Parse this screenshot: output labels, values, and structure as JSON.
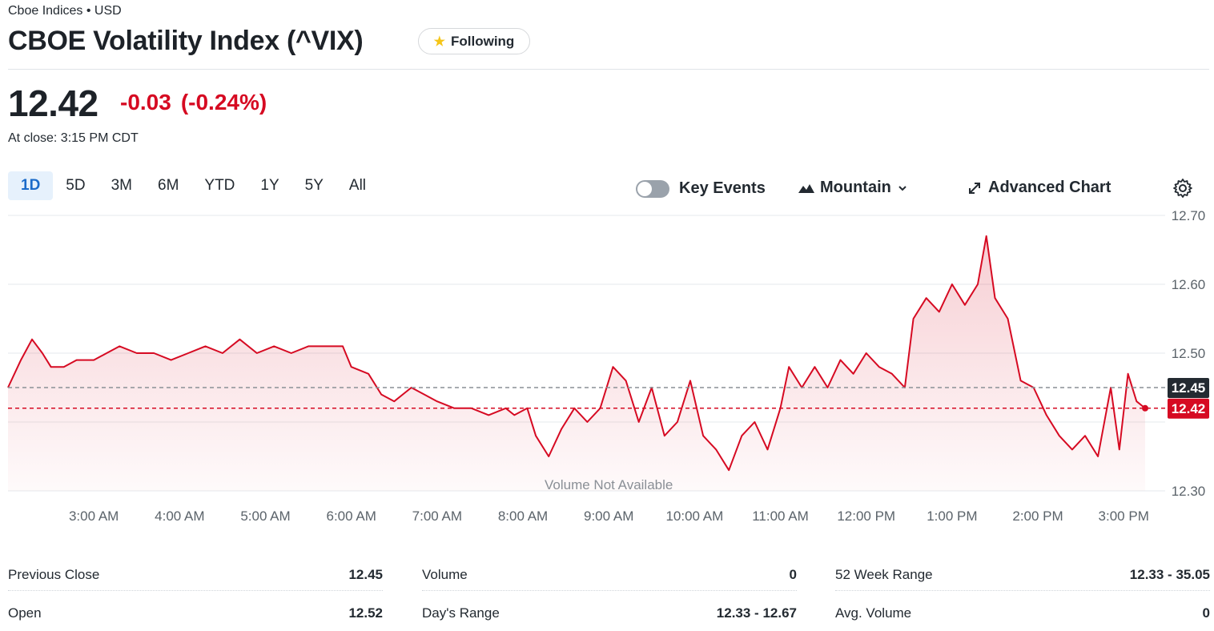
{
  "header": {
    "exchange": "Cboe Indices • USD",
    "title": "CBOE Volatility Index (^VIX)",
    "follow_label": "Following"
  },
  "quote": {
    "price": "12.42",
    "change": "-0.03",
    "change_pct": "(-0.24%)",
    "close_time": "At close: 3:15 PM CDT"
  },
  "ranges": [
    "1D",
    "5D",
    "3M",
    "6M",
    "YTD",
    "1Y",
    "5Y",
    "All"
  ],
  "active_range": "1D",
  "toolbar": {
    "key_events": "Key Events",
    "chart_type": "Mountain",
    "advanced": "Advanced Chart"
  },
  "colors": {
    "accent": "#d60a22",
    "active_tab_bg": "#e6f1fc",
    "active_tab_text": "#1b6bc9",
    "prev_close_tag": "#232a31"
  },
  "chart_data": {
    "type": "area",
    "y_ticks": [
      "12.70",
      "12.60",
      "12.50",
      "12.45",
      "12.42",
      "12.30"
    ],
    "ylim": [
      12.3,
      12.7
    ],
    "x_ticks": [
      "3:00 AM",
      "4:00 AM",
      "5:00 AM",
      "6:00 AM",
      "7:00 AM",
      "8:00 AM",
      "9:00 AM",
      "10:00 AM",
      "11:00 AM",
      "12:00 PM",
      "1:00 PM",
      "2:00 PM",
      "3:00 PM"
    ],
    "x_start_hour": 2.0,
    "x_end_hour": 15.25,
    "previous_close": 12.45,
    "last": 12.42,
    "volume_note": "Volume Not Available",
    "points": [
      [
        2.0,
        12.45
      ],
      [
        2.15,
        12.49
      ],
      [
        2.28,
        12.52
      ],
      [
        2.4,
        12.5
      ],
      [
        2.5,
        12.48
      ],
      [
        2.65,
        12.48
      ],
      [
        2.8,
        12.49
      ],
      [
        3.0,
        12.49
      ],
      [
        3.15,
        12.5
      ],
      [
        3.3,
        12.51
      ],
      [
        3.5,
        12.5
      ],
      [
        3.7,
        12.5
      ],
      [
        3.9,
        12.49
      ],
      [
        4.1,
        12.5
      ],
      [
        4.3,
        12.51
      ],
      [
        4.5,
        12.5
      ],
      [
        4.7,
        12.52
      ],
      [
        4.9,
        12.5
      ],
      [
        5.1,
        12.51
      ],
      [
        5.3,
        12.5
      ],
      [
        5.5,
        12.51
      ],
      [
        5.7,
        12.51
      ],
      [
        5.9,
        12.51
      ],
      [
        6.0,
        12.48
      ],
      [
        6.2,
        12.47
      ],
      [
        6.35,
        12.44
      ],
      [
        6.5,
        12.43
      ],
      [
        6.7,
        12.45
      ],
      [
        6.85,
        12.44
      ],
      [
        7.0,
        12.43
      ],
      [
        7.2,
        12.42
      ],
      [
        7.4,
        12.42
      ],
      [
        7.6,
        12.41
      ],
      [
        7.8,
        12.42
      ],
      [
        7.9,
        12.41
      ],
      [
        8.05,
        12.42
      ],
      [
        8.15,
        12.38
      ],
      [
        8.3,
        12.35
      ],
      [
        8.45,
        12.39
      ],
      [
        8.6,
        12.42
      ],
      [
        8.75,
        12.4
      ],
      [
        8.9,
        12.42
      ],
      [
        9.05,
        12.48
      ],
      [
        9.2,
        12.46
      ],
      [
        9.35,
        12.4
      ],
      [
        9.5,
        12.45
      ],
      [
        9.65,
        12.38
      ],
      [
        9.8,
        12.4
      ],
      [
        9.95,
        12.46
      ],
      [
        10.1,
        12.38
      ],
      [
        10.25,
        12.36
      ],
      [
        10.4,
        12.33
      ],
      [
        10.55,
        12.38
      ],
      [
        10.7,
        12.4
      ],
      [
        10.85,
        12.36
      ],
      [
        11.0,
        12.42
      ],
      [
        11.1,
        12.48
      ],
      [
        11.25,
        12.45
      ],
      [
        11.4,
        12.48
      ],
      [
        11.55,
        12.45
      ],
      [
        11.7,
        12.49
      ],
      [
        11.85,
        12.47
      ],
      [
        12.0,
        12.5
      ],
      [
        12.15,
        12.48
      ],
      [
        12.3,
        12.47
      ],
      [
        12.45,
        12.45
      ],
      [
        12.55,
        12.55
      ],
      [
        12.7,
        12.58
      ],
      [
        12.85,
        12.56
      ],
      [
        13.0,
        12.6
      ],
      [
        13.15,
        12.57
      ],
      [
        13.3,
        12.6
      ],
      [
        13.4,
        12.67
      ],
      [
        13.5,
        12.58
      ],
      [
        13.65,
        12.55
      ],
      [
        13.8,
        12.46
      ],
      [
        13.95,
        12.45
      ],
      [
        14.1,
        12.41
      ],
      [
        14.25,
        12.38
      ],
      [
        14.4,
        12.36
      ],
      [
        14.55,
        12.38
      ],
      [
        14.7,
        12.35
      ],
      [
        14.85,
        12.45
      ],
      [
        14.95,
        12.36
      ],
      [
        15.05,
        12.47
      ],
      [
        15.15,
        12.43
      ],
      [
        15.25,
        12.42
      ]
    ]
  },
  "stats": [
    [
      {
        "label": "Previous Close",
        "value": "12.45"
      },
      {
        "label": "Open",
        "value": "12.52"
      }
    ],
    [
      {
        "label": "Volume",
        "value": "0"
      },
      {
        "label": "Day's Range",
        "value": "12.33 - 12.67"
      }
    ],
    [
      {
        "label": "52 Week Range",
        "value": "12.33 - 35.05"
      },
      {
        "label": "Avg. Volume",
        "value": "0"
      }
    ]
  ]
}
